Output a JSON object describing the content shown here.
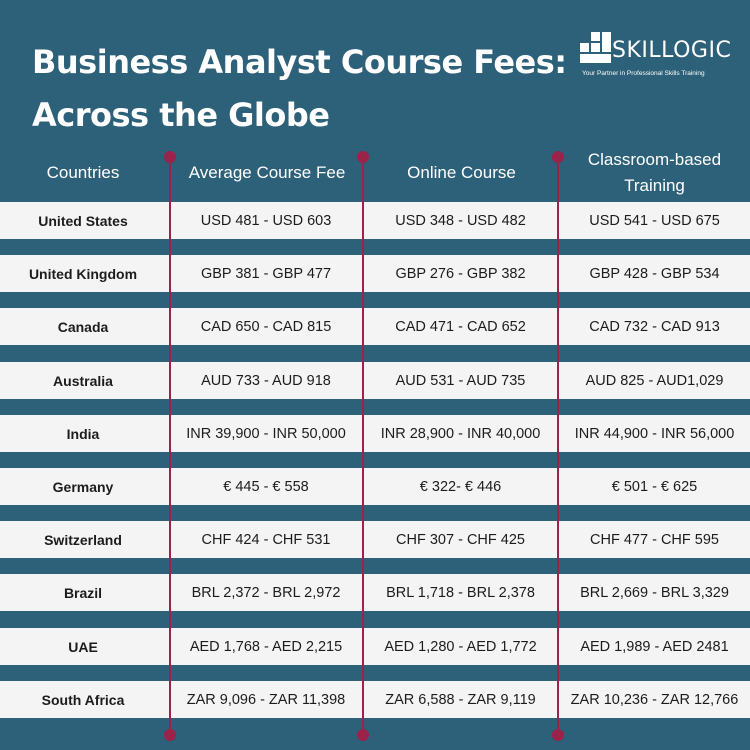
{
  "title": "Business Analyst Course Fees: Across the Globe",
  "logo": {
    "name": "SKILLOGIC",
    "tagline": "Your Partner in Professional Skills Training"
  },
  "headers": [
    "Countries",
    "Average Course Fee",
    "Online Course",
    "Classroom-based Training"
  ],
  "rows": [
    {
      "country": "United States",
      "average": "USD 481 - USD 603",
      "online": "USD 348 - USD 482",
      "classroom": "USD 541 - USD 675"
    },
    {
      "country": "United Kingdom",
      "average": "GBP 381 - GBP 477",
      "online": "GBP 276 - GBP 382",
      "classroom": "GBP 428 - GBP 534"
    },
    {
      "country": "Canada",
      "average": "CAD 650 - CAD 815",
      "online": "CAD 471 - CAD 652",
      "classroom": "CAD 732 - CAD 913"
    },
    {
      "country": "Australia",
      "average": "AUD 733 - AUD 918",
      "online": "AUD 531 - AUD 735",
      "classroom": "AUD 825 - AUD1,029"
    },
    {
      "country": "India",
      "average": "INR 39,900 - INR 50,000",
      "online": "INR 28,900 - INR 40,000",
      "classroom": "INR 44,900 - INR 56,000"
    },
    {
      "country": "Germany",
      "average": "€ 445 - € 558",
      "online": "€ 322- € 446",
      "classroom": "€ 501 - € 625"
    },
    {
      "country": "Switzerland",
      "average": "CHF 424 - CHF 531",
      "online": "CHF 307 - CHF 425",
      "classroom": "CHF 477 - CHF 595"
    },
    {
      "country": "Brazil",
      "average": "BRL 2,372 - BRL 2,972",
      "online": "BRL 1,718 - BRL 2,378",
      "classroom": "BRL 2,669 - BRL 3,329"
    },
    {
      "country": "UAE",
      "average": "AED 1,768 - AED 2,215",
      "online": "AED 1,280 - AED 1,772",
      "classroom": "AED 1,989 - AED 2481"
    },
    {
      "country": "South Africa",
      "average": "ZAR 9,096 - ZAR 11,398",
      "online": "ZAR 6,588 - ZAR 9,119",
      "classroom": "ZAR 10,236 - ZAR 12,766"
    }
  ],
  "colors": {
    "background": "#2d6079",
    "row": "#f4f4f4",
    "divider": "#9b2249",
    "text": "#1c1c1c"
  }
}
